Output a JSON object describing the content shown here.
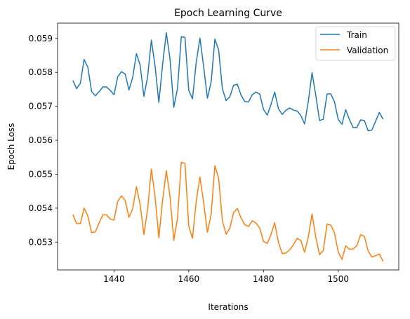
{
  "chart_data": {
    "type": "line",
    "title": "Epoch Learning Curve",
    "xlabel": "Iterations",
    "ylabel": "Epoch Loss",
    "xlim": [
      1424.9,
      1516.2
    ],
    "ylim": [
      0.05218,
      0.05945
    ],
    "xticks": [
      1440,
      1460,
      1480,
      1500
    ],
    "yticks": [
      0.053,
      0.054,
      0.055,
      0.056,
      0.057,
      0.058,
      0.059
    ],
    "ytick_labels": [
      "0.053",
      "0.054",
      "0.055",
      "0.056",
      "0.057",
      "0.058",
      "0.059"
    ],
    "grid": false,
    "legend": "top-right",
    "x": [
      1429,
      1430,
      1431,
      1432,
      1433,
      1434,
      1435,
      1436,
      1437,
      1438,
      1439,
      1440,
      1441,
      1442,
      1443,
      1444,
      1445,
      1446,
      1447,
      1448,
      1449,
      1450,
      1451,
      1452,
      1453,
      1454,
      1455,
      1456,
      1457,
      1458,
      1459,
      1460,
      1461,
      1462,
      1463,
      1464,
      1465,
      1466,
      1467,
      1468,
      1469,
      1470,
      1471,
      1472,
      1473,
      1474,
      1475,
      1476,
      1477,
      1478,
      1479,
      1480,
      1481,
      1482,
      1483,
      1484,
      1485,
      1486,
      1487,
      1488,
      1489,
      1490,
      1491,
      1492,
      1493,
      1494,
      1495,
      1496,
      1497,
      1498,
      1499,
      1500,
      1501,
      1502,
      1503,
      1504,
      1505,
      1506,
      1507,
      1508,
      1509,
      1510,
      1511,
      1512
    ],
    "series": [
      {
        "name": "Train",
        "color": "#1f77b4",
        "values": [
          0.05776,
          0.05752,
          0.05768,
          0.05838,
          0.05815,
          0.05744,
          0.05731,
          0.05743,
          0.05757,
          0.05757,
          0.05747,
          0.05734,
          0.05787,
          0.05802,
          0.05795,
          0.05748,
          0.05785,
          0.05855,
          0.05821,
          0.05729,
          0.05787,
          0.05895,
          0.05818,
          0.05711,
          0.05823,
          0.05917,
          0.05838,
          0.05697,
          0.05753,
          0.05905,
          0.05903,
          0.05747,
          0.05722,
          0.0583,
          0.05901,
          0.05816,
          0.05724,
          0.05772,
          0.05898,
          0.05866,
          0.05752,
          0.05717,
          0.05728,
          0.05762,
          0.05765,
          0.05733,
          0.05714,
          0.05713,
          0.05734,
          0.05742,
          0.05736,
          0.05691,
          0.05674,
          0.05705,
          0.05742,
          0.05693,
          0.05676,
          0.05688,
          0.05695,
          0.05689,
          0.05686,
          0.05673,
          0.05648,
          0.05715,
          0.05799,
          0.05732,
          0.05658,
          0.05662,
          0.05736,
          0.05737,
          0.05713,
          0.05661,
          0.05647,
          0.0569,
          0.05661,
          0.05637,
          0.05638,
          0.0566,
          0.05658,
          0.05628,
          0.0563,
          0.05656,
          0.05682,
          0.05662
        ]
      },
      {
        "name": "Validation",
        "color": "#ff7f0e",
        "values": [
          0.05381,
          0.05354,
          0.05355,
          0.054,
          0.05377,
          0.05328,
          0.0533,
          0.05356,
          0.0538,
          0.0538,
          0.05368,
          0.05365,
          0.0542,
          0.05436,
          0.05422,
          0.05373,
          0.05398,
          0.05463,
          0.0541,
          0.05322,
          0.05397,
          0.05515,
          0.05433,
          0.05313,
          0.05423,
          0.0551,
          0.05433,
          0.05305,
          0.05371,
          0.05535,
          0.05532,
          0.05347,
          0.05311,
          0.0542,
          0.05492,
          0.05415,
          0.05329,
          0.05382,
          0.05525,
          0.05488,
          0.05363,
          0.05323,
          0.05341,
          0.05387,
          0.05399,
          0.05371,
          0.05351,
          0.05346,
          0.05363,
          0.05356,
          0.05341,
          0.05302,
          0.05296,
          0.05322,
          0.05357,
          0.05299,
          0.05266,
          0.05268,
          0.05277,
          0.05292,
          0.05311,
          0.05305,
          0.0527,
          0.05315,
          0.05383,
          0.05314,
          0.05263,
          0.05275,
          0.05353,
          0.0535,
          0.05327,
          0.05271,
          0.05249,
          0.05289,
          0.05279,
          0.0528,
          0.0529,
          0.05322,
          0.05317,
          0.05274,
          0.05256,
          0.0526,
          0.05265,
          0.05243
        ]
      }
    ]
  }
}
